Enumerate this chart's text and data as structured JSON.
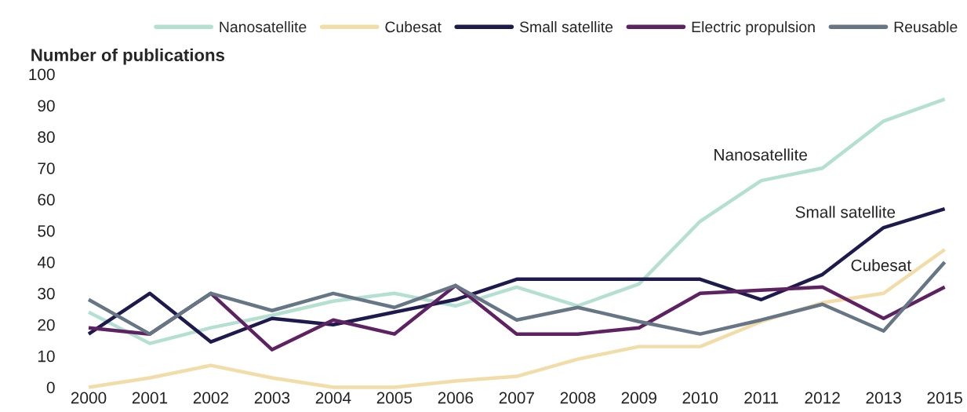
{
  "chart_data": {
    "type": "line",
    "title": "Number of publications",
    "categories": [
      "2000",
      "2001",
      "2002",
      "2003",
      "2004",
      "2005",
      "2006",
      "2007",
      "2008",
      "2009",
      "2010",
      "2011",
      "2012",
      "2013",
      "2015"
    ],
    "series": [
      {
        "name": "Nanosatellite",
        "color": "#b3e0d0",
        "values": [
          24,
          14,
          19,
          23,
          27.5,
          30,
          26,
          32,
          26,
          33,
          53,
          66,
          70,
          85,
          92
        ]
      },
      {
        "name": "Cubesat",
        "color": "#f2dca8",
        "values": [
          0,
          3,
          7,
          3,
          0,
          0,
          2,
          3.5,
          9,
          13,
          13,
          21,
          27,
          30,
          44
        ]
      },
      {
        "name": "Small satellite",
        "color": "#1e1a4d",
        "values": [
          17,
          30,
          14.5,
          22,
          20,
          24,
          28,
          34.5,
          34.5,
          34.5,
          34.5,
          28,
          36,
          51,
          57
        ]
      },
      {
        "name": "Electric propulsion",
        "color": "#5e2263",
        "values": [
          19,
          17,
          30,
          12,
          21.5,
          17,
          32.5,
          17,
          17,
          19,
          30,
          31,
          32,
          22,
          32
        ]
      },
      {
        "name": "Reusable",
        "color": "#667685",
        "values": [
          28,
          17,
          30,
          24.5,
          30,
          25.5,
          32.5,
          21.5,
          25.5,
          21,
          17,
          21.5,
          26.5,
          18,
          40
        ]
      }
    ],
    "ylim": [
      0,
      100
    ],
    "yticks": [
      0,
      10,
      20,
      30,
      40,
      50,
      60,
      70,
      80,
      90,
      100
    ],
    "grid": false,
    "legend": "top",
    "line_style": "solid",
    "marker": "none",
    "annotations": [
      "Nanosatellite",
      "Small satellite",
      "Cubesat"
    ]
  }
}
